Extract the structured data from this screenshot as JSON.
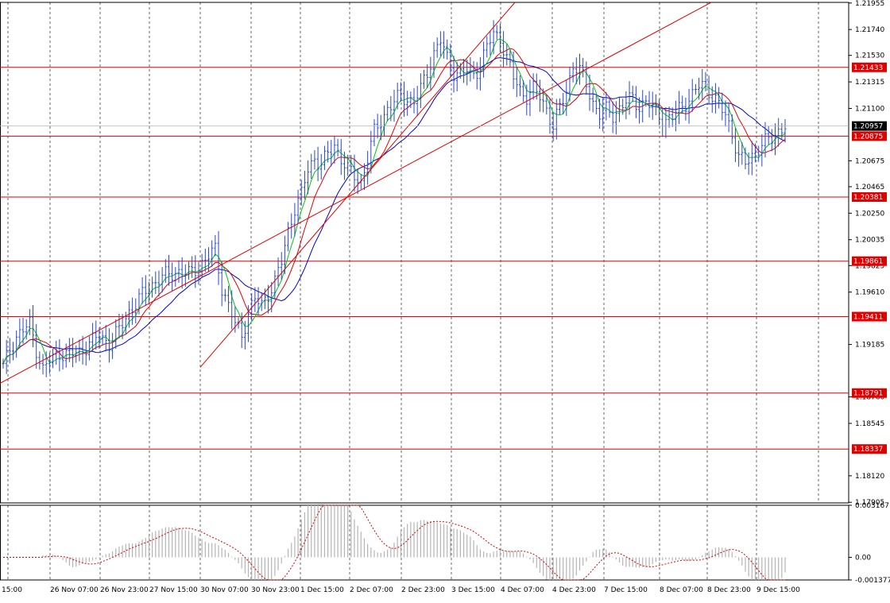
{
  "chart_data": [
    {
      "type": "candlestick",
      "title": "",
      "xlabel": "",
      "ylabel": "",
      "ylim": [
        1.179,
        1.2196
      ],
      "grid": true,
      "y_ticks": [
        "1.21955",
        "1.21740",
        "1.21530",
        "1.21315",
        "1.21100",
        "1.20675",
        "1.20465",
        "1.20250",
        "1.20035",
        "1.19825",
        "1.19610",
        "1.19185",
        "1.18760",
        "1.18545",
        "1.18120",
        "1.17905"
      ],
      "time_labels": [
        "15:00",
        "26 Nov 07:00",
        "26 Nov 23:00",
        "27 Nov 15:00",
        "30 Nov 07:00",
        "30 Nov 23:00",
        "1 Dec 15:00",
        "2 Dec 07:00",
        "2 Dec 23:00",
        "3 Dec 15:00",
        "4 Dec 07:00",
        "4 Dec 23:00",
        "7 Dec 15:00",
        "8 Dec 07:00",
        "8 Dec 23:00",
        "9 Dec 15:00"
      ],
      "current_price": "1.20957",
      "horizontal_levels": [
        "1.21433",
        "1.20875",
        "1.20381",
        "1.19861",
        "1.19411",
        "1.18791",
        "1.18337"
      ],
      "trendlines": [
        {
          "from": [
            "25 Nov 16:00",
            1.1887
          ],
          "to": [
            "8 Dec 23:00",
            1.2196
          ]
        },
        {
          "from": [
            "30 Nov 15:00",
            1.19
          ],
          "to": [
            "4 Dec 07:00",
            1.2196
          ]
        }
      ],
      "price_path": [
        [
          0,
          1.19
        ],
        [
          2,
          1.1915
        ],
        [
          4,
          1.1925
        ],
        [
          6,
          1.193
        ],
        [
          8,
          1.1935
        ],
        [
          10,
          1.1915
        ],
        [
          12,
          1.1898
        ],
        [
          14,
          1.1905
        ],
        [
          17,
          1.1912
        ],
        [
          20,
          1.191
        ],
        [
          23,
          1.1912
        ],
        [
          26,
          1.192
        ],
        [
          29,
          1.1925
        ],
        [
          32,
          1.192
        ],
        [
          35,
          1.193
        ],
        [
          38,
          1.1945
        ],
        [
          41,
          1.1955
        ],
        [
          44,
          1.1965
        ],
        [
          47,
          1.1972
        ],
        [
          50,
          1.1975
        ],
        [
          53,
          1.1978
        ],
        [
          56,
          1.1975
        ],
        [
          59,
          1.1982
        ],
        [
          62,
          1.199
        ],
        [
          64,
          1.1995
        ],
        [
          66,
          1.1965
        ],
        [
          68,
          1.195
        ],
        [
          70,
          1.1935
        ],
        [
          72,
          1.1925
        ],
        [
          74,
          1.1945
        ],
        [
          76,
          1.1955
        ],
        [
          78,
          1.195
        ],
        [
          80,
          1.196
        ],
        [
          82,
          1.197
        ],
        [
          84,
          1.1985
        ],
        [
          86,
          1.201
        ],
        [
          88,
          1.203
        ],
        [
          90,
          1.204
        ],
        [
          92,
          1.206
        ],
        [
          94,
          1.207
        ],
        [
          96,
          1.2065
        ],
        [
          98,
          1.2072
        ],
        [
          100,
          1.208
        ],
        [
          102,
          1.207
        ],
        [
          104,
          1.206
        ],
        [
          106,
          1.2055
        ],
        [
          108,
          1.205
        ],
        [
          110,
          1.207
        ],
        [
          112,
          1.209
        ],
        [
          114,
          1.21
        ],
        [
          116,
          1.211
        ],
        [
          118,
          1.2115
        ],
        [
          120,
          1.212
        ],
        [
          122,
          1.2118
        ],
        [
          124,
          1.2115
        ],
        [
          126,
          1.2125
        ],
        [
          128,
          1.214
        ],
        [
          130,
          1.2155
        ],
        [
          132,
          1.2165
        ],
        [
          134,
          1.215
        ],
        [
          136,
          1.214
        ],
        [
          138,
          1.2138
        ],
        [
          140,
          1.214
        ],
        [
          142,
          1.2138
        ],
        [
          144,
          1.2145
        ],
        [
          146,
          1.216
        ],
        [
          148,
          1.217
        ],
        [
          150,
          1.2168
        ],
        [
          152,
          1.215
        ],
        [
          154,
          1.2135
        ],
        [
          156,
          1.2125
        ],
        [
          158,
          1.212
        ],
        [
          160,
          1.2125
        ],
        [
          162,
          1.212
        ],
        [
          164,
          1.211
        ],
        [
          166,
          1.2095
        ],
        [
          168,
          1.211
        ],
        [
          170,
          1.2125
        ],
        [
          172,
          1.2145
        ],
        [
          174,
          1.214
        ],
        [
          176,
          1.213
        ],
        [
          178,
          1.2115
        ],
        [
          180,
          1.2105
        ],
        [
          182,
          1.2108
        ],
        [
          184,
          1.2105
        ],
        [
          186,
          1.211
        ],
        [
          188,
          1.2115
        ],
        [
          190,
          1.2118
        ],
        [
          192,
          1.2112
        ],
        [
          194,
          1.2115
        ],
        [
          196,
          1.211
        ],
        [
          198,
          1.2105
        ],
        [
          200,
          1.21
        ],
        [
          202,
          1.2102
        ],
        [
          204,
          1.211
        ],
        [
          206,
          1.2115
        ],
        [
          208,
          1.212
        ],
        [
          210,
          1.2128
        ],
        [
          212,
          1.213
        ],
        [
          214,
          1.212
        ],
        [
          216,
          1.2112
        ],
        [
          218,
          1.2105
        ],
        [
          220,
          1.209
        ],
        [
          222,
          1.207
        ],
        [
          224,
          1.2065
        ],
        [
          226,
          1.2072
        ],
        [
          228,
          1.2078
        ],
        [
          230,
          1.2082
        ],
        [
          232,
          1.2086
        ],
        [
          234,
          1.2092
        ],
        [
          236,
          1.2096
        ]
      ],
      "moving_averages": [
        {
          "color": "#00c800",
          "period": 5
        },
        {
          "color": "#e00000",
          "period": 10
        },
        {
          "color": "#0000c8",
          "period": 20
        }
      ]
    },
    {
      "type": "histogram",
      "ylim": [
        -0.001377,
        0.003167
      ],
      "y_ticks": [
        "0.003167",
        "0.00",
        "-0.001377"
      ],
      "series_colors": {
        "histogram": "#b4b4b4",
        "signal": "#e00000"
      }
    }
  ]
}
